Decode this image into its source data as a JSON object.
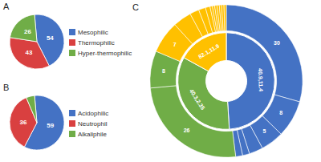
{
  "chart_data": [
    {
      "type": "pie",
      "title": "A",
      "categories": [
        "Mesophilic",
        "Thermophilic",
        "Hyper-thermophilic"
      ],
      "values": [
        54,
        43,
        26
      ],
      "colors": [
        "#4472C4",
        "#D94040",
        "#70AD47"
      ],
      "data_labels": true,
      "legend": "right"
    },
    {
      "type": "pie",
      "title": "B",
      "categories": [
        "Acidophilic",
        "Neutrophil",
        "Alkaliphile"
      ],
      "values": [
        59,
        36,
        5
      ],
      "value_labels": [
        "59",
        "36",
        null
      ],
      "colors": [
        "#4472C4",
        "#D94040",
        "#70AD47"
      ],
      "data_labels": true,
      "legend": "right"
    },
    {
      "type": "donut",
      "title": "C",
      "data_labels": true,
      "series": [
        {
          "values": [
            49,
            34,
            17
          ],
          "colors": [
            "#4472C4",
            "#70AD47",
            "#FFC000"
          ],
          "value_labels": [
            "40.9,11.4",
            "40.3,2.35",
            "82.1,11.9"
          ]
        },
        {
          "values": [
            30,
            8,
            5,
            3,
            1.5,
            1.5,
            26,
            8,
            7,
            4,
            2,
            1.5,
            1,
            0.5,
            0.5,
            0.5,
            0.5,
            0.5,
            0.5,
            0.5
          ],
          "colors": [
            "#4472C4",
            "#4472C4",
            "#4472C4",
            "#4472C4",
            "#4472C4",
            "#4472C4",
            "#70AD47",
            "#70AD47",
            "#FFC000",
            "#FFC000",
            "#FFC000",
            "#FFC000",
            "#FFC000",
            "#FFC000",
            "#FFC000",
            "#FFC000",
            "#FFC000",
            "#FFC000",
            "#FFC000",
            "#FFC000"
          ],
          "value_labels": [
            "30",
            "8",
            "5",
            null,
            null,
            null,
            "26",
            "8",
            "7",
            null,
            null,
            null,
            null,
            null,
            null,
            null,
            null,
            null,
            null,
            null
          ]
        }
      ]
    }
  ]
}
